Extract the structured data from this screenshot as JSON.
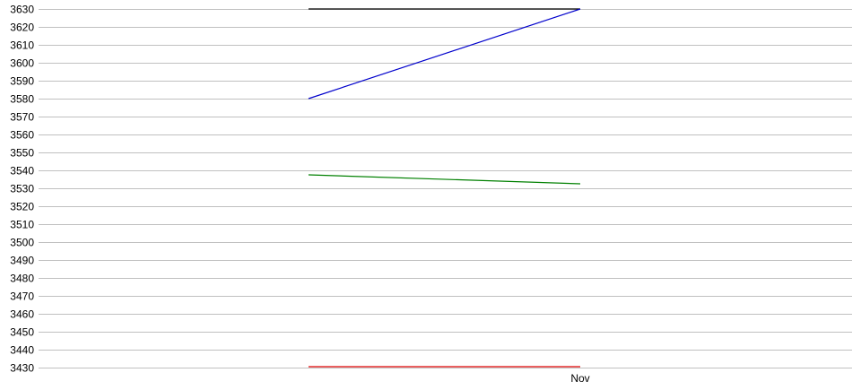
{
  "chart_data": {
    "type": "line",
    "title": "",
    "xlabel": "",
    "ylabel": "",
    "x": [
      "",
      "Nov"
    ],
    "x_tick_labels": [
      "Nov"
    ],
    "ylim": [
      3430,
      3630
    ],
    "y_ticks": [
      3430,
      3440,
      3450,
      3460,
      3470,
      3480,
      3490,
      3500,
      3510,
      3520,
      3530,
      3540,
      3550,
      3560,
      3570,
      3580,
      3590,
      3600,
      3610,
      3620,
      3630
    ],
    "grid": true,
    "legend": "none",
    "series": [
      {
        "color": "#000000",
        "values": [
          3630,
          3630
        ]
      },
      {
        "color": "#0000cc",
        "values": [
          3580,
          3630
        ]
      },
      {
        "color": "#008000",
        "values": [
          3537.5,
          3532.5
        ]
      },
      {
        "color": "#dd0000",
        "values": [
          3430.5,
          3430.5
        ]
      }
    ]
  }
}
